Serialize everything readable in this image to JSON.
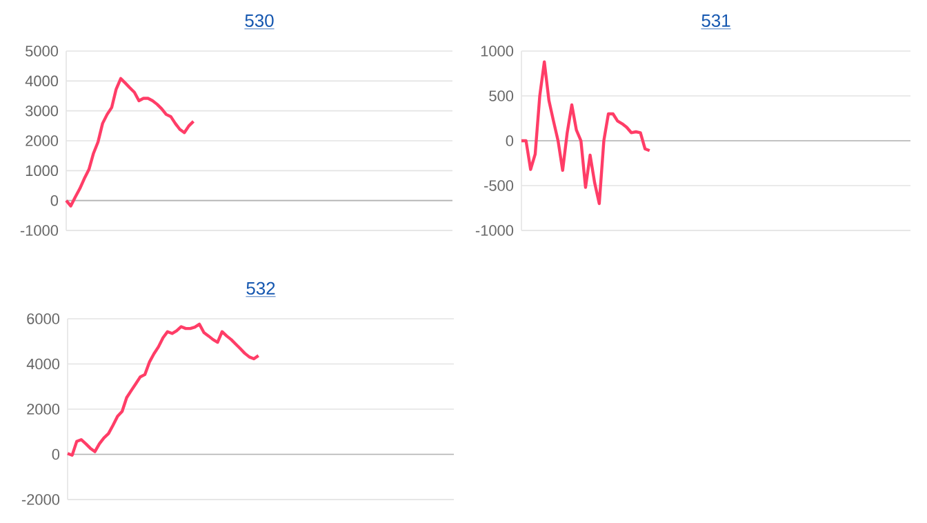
{
  "chart_data": [
    {
      "type": "line",
      "title": "530",
      "color": "#ff3d67",
      "grid": "y",
      "tick_labels": "y",
      "ylim": [
        -1000,
        5000
      ],
      "yticks": [
        -1000,
        0,
        1000,
        2000,
        3000,
        4000,
        5000
      ],
      "categories": [
        null,
        null,
        null,
        null,
        null,
        null,
        null,
        null,
        null,
        null,
        null,
        null,
        null,
        null,
        null,
        null,
        null,
        null,
        null,
        null,
        null,
        null,
        null,
        null,
        null,
        null,
        null,
        null,
        null,
        null,
        null,
        null,
        null,
        null,
        null,
        null,
        null,
        null,
        null,
        null,
        null,
        null,
        null,
        null,
        null,
        null,
        null,
        null,
        null,
        null,
        null,
        null,
        null,
        null,
        null,
        null,
        null,
        null,
        null,
        null,
        null,
        null,
        null,
        null,
        null,
        null,
        null,
        null,
        null,
        null,
        null,
        null,
        null,
        null,
        null,
        null,
        null,
        null,
        null,
        null,
        null,
        null,
        null,
        null,
        null,
        null
      ],
      "values": [
        0,
        -180,
        120,
        400,
        740,
        1040,
        1580,
        1960,
        2580,
        2880,
        3110,
        3730,
        4080,
        3930,
        3770,
        3620,
        3340,
        3420,
        3420,
        3340,
        3220,
        3070,
        2880,
        2810,
        2580,
        2380,
        2270,
        2500,
        2650,
        null,
        null,
        null,
        null,
        null,
        null,
        null,
        null,
        null,
        null,
        null,
        null,
        null,
        null,
        null,
        null,
        null,
        null,
        null,
        null,
        null,
        null,
        null,
        null,
        null,
        null,
        null,
        null,
        null,
        null,
        null,
        null,
        null,
        null,
        null,
        null,
        null,
        null,
        null,
        null,
        null,
        null,
        null,
        null,
        null,
        null,
        null,
        null,
        null,
        null,
        null,
        null,
        null,
        null,
        null,
        null,
        null
      ]
    },
    {
      "type": "line",
      "title": "531",
      "color": "#ff3d67",
      "grid": "y",
      "tick_labels": "y",
      "ylim": [
        -1000,
        1000
      ],
      "yticks": [
        -1000,
        -500,
        0,
        500,
        1000
      ],
      "categories": [
        null,
        null,
        null,
        null,
        null,
        null,
        null,
        null,
        null,
        null,
        null,
        null,
        null,
        null,
        null,
        null,
        null,
        null,
        null,
        null,
        null,
        null,
        null,
        null,
        null,
        null,
        null,
        null,
        null,
        null,
        null,
        null,
        null,
        null,
        null,
        null,
        null,
        null,
        null,
        null,
        null,
        null,
        null,
        null,
        null,
        null,
        null,
        null,
        null,
        null,
        null,
        null,
        null,
        null,
        null,
        null,
        null,
        null,
        null,
        null,
        null,
        null,
        null,
        null,
        null,
        null,
        null,
        null,
        null,
        null,
        null,
        null,
        null,
        null,
        null,
        null,
        null,
        null,
        null,
        null,
        null,
        null,
        null,
        null,
        null,
        null
      ],
      "values": [
        0,
        0,
        -320,
        -150,
        500,
        880,
        450,
        220,
        0,
        -330,
        90,
        400,
        120,
        0,
        -520,
        -160,
        -470,
        -700,
        0,
        300,
        300,
        220,
        190,
        150,
        90,
        100,
        90,
        -90,
        -110,
        null,
        null,
        null,
        null,
        null,
        null,
        null,
        null,
        null,
        null,
        null,
        null,
        null,
        null,
        null,
        null,
        null,
        null,
        null,
        null,
        null,
        null,
        null,
        null,
        null,
        null,
        null,
        null,
        null,
        null,
        null,
        null,
        null,
        null,
        null,
        null,
        null,
        null,
        null,
        null,
        null,
        null,
        null,
        null,
        null,
        null,
        null,
        null,
        null,
        null,
        null,
        null,
        null,
        null,
        null,
        null,
        null
      ]
    },
    {
      "type": "line",
      "title": "532",
      "color": "#ff3d67",
      "grid": "y",
      "tick_labels": "y",
      "ylim": [
        -2000,
        6000
      ],
      "yticks": [
        -2000,
        0,
        2000,
        4000,
        6000
      ],
      "categories": [
        null,
        null,
        null,
        null,
        null,
        null,
        null,
        null,
        null,
        null,
        null,
        null,
        null,
        null,
        null,
        null,
        null,
        null,
        null,
        null,
        null,
        null,
        null,
        null,
        null,
        null,
        null,
        null,
        null,
        null,
        null,
        null,
        null,
        null,
        null,
        null,
        null,
        null,
        null,
        null,
        null,
        null,
        null,
        null,
        null,
        null,
        null,
        null,
        null,
        null,
        null,
        null,
        null,
        null,
        null,
        null,
        null,
        null,
        null,
        null,
        null,
        null,
        null,
        null,
        null,
        null,
        null,
        null,
        null,
        null,
        null,
        null,
        null,
        null,
        null,
        null,
        null,
        null,
        null,
        null,
        null,
        null,
        null,
        null,
        null,
        null
      ],
      "values": [
        40,
        -40,
        570,
        650,
        470,
        270,
        120,
        470,
        730,
        920,
        1290,
        1690,
        1900,
        2510,
        2820,
        3120,
        3430,
        3530,
        4080,
        4450,
        4760,
        5160,
        5430,
        5350,
        5470,
        5650,
        5570,
        5570,
        5630,
        5760,
        5390,
        5240,
        5080,
        4960,
        5430,
        5240,
        5080,
        4880,
        4680,
        4470,
        4310,
        4230,
        4370,
        null,
        null,
        null,
        null,
        null,
        null,
        null,
        null,
        null,
        null,
        null,
        null,
        null,
        null,
        null,
        null,
        null,
        null,
        null,
        null,
        null,
        null,
        null,
        null,
        null,
        null,
        null,
        null,
        null,
        null,
        null,
        null,
        null,
        null,
        null,
        null,
        null,
        null,
        null,
        null,
        null,
        null,
        null
      ]
    }
  ]
}
